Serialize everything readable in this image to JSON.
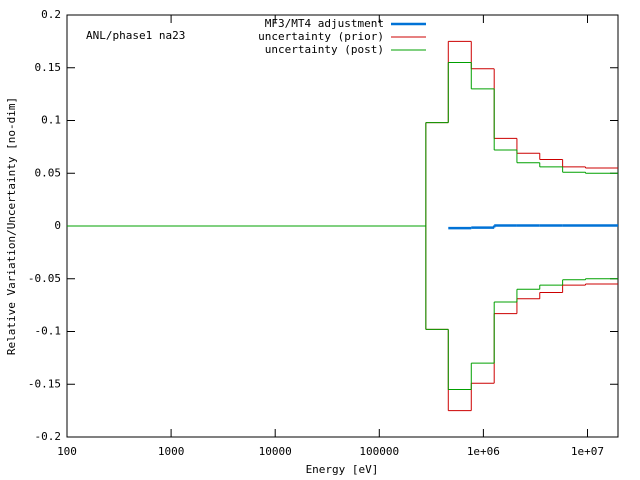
{
  "chart_data": {
    "type": "step",
    "annotation": "ANL/phase1 na23",
    "x_label": "Energy [eV]",
    "y_label": "Relative Variation/Uncertainty [no-dim]",
    "log_x": true,
    "legend": "top",
    "x": [
      100,
      280000,
      460000,
      765000,
      1270000,
      2100000,
      3480000,
      5770000,
      9570000
    ],
    "series": [
      {
        "name": "MF3/MT4 adjustment",
        "color": "#0072d6",
        "width": 2.5,
        "values": [
          null,
          null,
          -0.002,
          -0.0015,
          0.0005,
          0.0005,
          0.0005,
          0.0005,
          0.0005
        ]
      },
      {
        "name": "uncertainty (prior)",
        "color": "#cc0000",
        "width": 1,
        "values": [
          0,
          0.098,
          0.175,
          0.149,
          0.083,
          0.069,
          0.063,
          0.056,
          0.055
        ]
      },
      {
        "color": "#cc0000",
        "width": 1,
        "values": [
          0,
          -0.098,
          -0.175,
          -0.149,
          -0.083,
          -0.069,
          -0.063,
          -0.056,
          -0.055
        ]
      },
      {
        "name": "uncertainty (post)",
        "color": "#00a000",
        "width": 1,
        "values": [
          0,
          0.098,
          0.155,
          0.13,
          0.072,
          0.06,
          0.056,
          0.051,
          0.05
        ]
      },
      {
        "color": "#00a000",
        "width": 1,
        "values": [
          0,
          -0.098,
          -0.155,
          -0.13,
          -0.072,
          -0.06,
          -0.056,
          -0.051,
          -0.05
        ]
      }
    ],
    "xlim": [
      100,
      19640000
    ],
    "xticks": [
      100,
      1000,
      10000,
      100000,
      {
        "value": 1000000,
        "label": "1e+06"
      },
      {
        "value": 10000000,
        "label": "1e+07"
      }
    ],
    "ylim": [
      -0.2,
      0.2
    ],
    "yticks": [
      -0.2,
      -0.15,
      -0.1,
      -0.05,
      0,
      0.05,
      0.1,
      0.15,
      0.2
    ]
  }
}
